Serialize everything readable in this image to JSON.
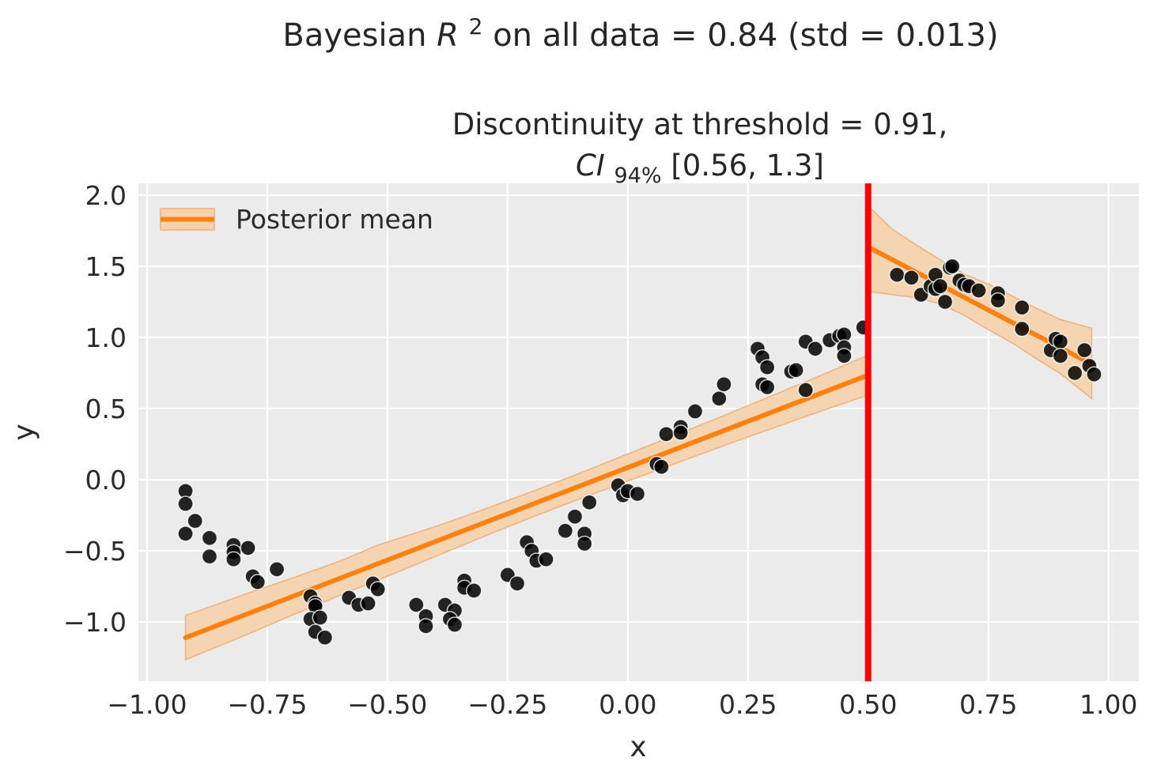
{
  "figure": {
    "suptitle": {
      "pre": "Bayesian ",
      "var": "R",
      "sup": "2",
      "post": " on all data = 0.84 (std = 0.013)"
    },
    "axes_title": {
      "line1": "Discontinuity at threshold = 0.91,",
      "line2_var": "CI",
      "line2_sub": "94%",
      "line2_rest": "[0.56, 1.3]"
    },
    "xlabel": "x",
    "ylabel": "y",
    "legend": {
      "label": "Posterior mean"
    }
  },
  "chart_data": {
    "type": "scatter",
    "title": "Bayesian R^2 on all data = 0.84 (std = 0.013)",
    "subtitle": "Discontinuity at threshold = 0.91, CI_94%[0.56, 1.3]",
    "xlabel": "x",
    "ylabel": "y",
    "xlim": [
      -1.018,
      1.063
    ],
    "ylim": [
      -1.417,
      2.083
    ],
    "grid": true,
    "legend_position": "upper left",
    "threshold_x": 0.5,
    "xticks": {
      "values": [
        -1.0,
        -0.75,
        -0.5,
        -0.25,
        0.0,
        0.25,
        0.5,
        0.75,
        1.0
      ],
      "labels": [
        "−1.00",
        "−0.75",
        "−0.50",
        "−0.25",
        "0.00",
        "0.25",
        "0.50",
        "0.75",
        "1.00"
      ]
    },
    "yticks": {
      "values": [
        2.0,
        1.5,
        1.0,
        0.5,
        0.0,
        -0.5,
        -1.0
      ],
      "labels": [
        "2.0",
        "1.5",
        "1.0",
        "0.5",
        "0.0",
        "−0.5",
        "−1.0"
      ]
    },
    "scatter_left": [
      [
        -0.92,
        -0.08
      ],
      [
        -0.92,
        -0.17
      ],
      [
        -0.9,
        -0.29
      ],
      [
        -0.92,
        -0.38
      ],
      [
        -0.87,
        -0.41
      ],
      [
        -0.87,
        -0.54
      ],
      [
        -0.82,
        -0.46
      ],
      [
        -0.82,
        -0.51
      ],
      [
        -0.82,
        -0.56
      ],
      [
        -0.79,
        -0.48
      ],
      [
        -0.78,
        -0.68
      ],
      [
        -0.77,
        -0.72
      ],
      [
        -0.73,
        -0.63
      ],
      [
        -0.66,
        -0.82
      ],
      [
        -0.65,
        -0.87
      ],
      [
        -0.65,
        -0.89
      ],
      [
        -0.66,
        -0.98
      ],
      [
        -0.64,
        -0.97
      ],
      [
        -0.65,
        -1.07
      ],
      [
        -0.63,
        -1.11
      ],
      [
        -0.58,
        -0.83
      ],
      [
        -0.56,
        -0.88
      ],
      [
        -0.54,
        -0.87
      ],
      [
        -0.53,
        -0.73
      ],
      [
        -0.52,
        -0.77
      ],
      [
        -0.44,
        -0.88
      ],
      [
        -0.42,
        -0.96
      ],
      [
        -0.42,
        -1.03
      ],
      [
        -0.38,
        -0.88
      ],
      [
        -0.36,
        -0.92
      ],
      [
        -0.37,
        -0.98
      ],
      [
        -0.36,
        -1.02
      ],
      [
        -0.34,
        -0.71
      ],
      [
        -0.34,
        -0.76
      ],
      [
        -0.32,
        -0.78
      ],
      [
        -0.25,
        -0.67
      ],
      [
        -0.23,
        -0.73
      ],
      [
        -0.21,
        -0.44
      ],
      [
        -0.2,
        -0.5
      ],
      [
        -0.19,
        -0.57
      ],
      [
        -0.17,
        -0.56
      ],
      [
        -0.13,
        -0.36
      ],
      [
        -0.11,
        -0.26
      ],
      [
        -0.09,
        -0.38
      ],
      [
        -0.09,
        -0.45
      ],
      [
        -0.08,
        -0.16
      ],
      [
        -0.02,
        -0.04
      ],
      [
        -0.01,
        -0.11
      ],
      [
        0.0,
        -0.08
      ],
      [
        0.02,
        -0.1
      ],
      [
        0.06,
        0.11
      ],
      [
        0.07,
        0.09
      ],
      [
        0.08,
        0.32
      ],
      [
        0.11,
        0.37
      ],
      [
        0.11,
        0.33
      ],
      [
        0.14,
        0.48
      ],
      [
        0.19,
        0.57
      ],
      [
        0.2,
        0.67
      ],
      [
        0.27,
        0.92
      ],
      [
        0.28,
        0.86
      ],
      [
        0.29,
        0.79
      ],
      [
        0.28,
        0.67
      ],
      [
        0.29,
        0.65
      ],
      [
        0.34,
        0.76
      ],
      [
        0.35,
        0.77
      ],
      [
        0.37,
        0.97
      ],
      [
        0.39,
        0.92
      ],
      [
        0.37,
        0.63
      ],
      [
        0.42,
        0.98
      ],
      [
        0.44,
        1.01
      ],
      [
        0.45,
        1.02
      ],
      [
        0.45,
        0.93
      ],
      [
        0.45,
        0.87
      ],
      [
        0.49,
        1.07
      ]
    ],
    "scatter_right": [
      [
        0.56,
        1.44
      ],
      [
        0.59,
        1.42
      ],
      [
        0.61,
        1.3
      ],
      [
        0.63,
        1.36
      ],
      [
        0.64,
        1.44
      ],
      [
        0.64,
        1.34
      ],
      [
        0.65,
        1.36
      ],
      [
        0.66,
        1.25
      ],
      [
        0.67,
        1.49
      ],
      [
        0.675,
        1.5
      ],
      [
        0.69,
        1.4
      ],
      [
        0.7,
        1.37
      ],
      [
        0.71,
        1.36
      ],
      [
        0.73,
        1.33
      ],
      [
        0.77,
        1.31
      ],
      [
        0.77,
        1.26
      ],
      [
        0.82,
        1.21
      ],
      [
        0.82,
        1.06
      ],
      [
        0.88,
        0.91
      ],
      [
        0.89,
        0.99
      ],
      [
        0.9,
        0.97
      ],
      [
        0.9,
        0.87
      ],
      [
        0.93,
        0.75
      ],
      [
        0.95,
        0.91
      ],
      [
        0.96,
        0.8
      ],
      [
        0.97,
        0.74
      ]
    ],
    "posterior_mean_left": [
      [
        -0.92,
        -1.111
      ],
      [
        0.5,
        0.735
      ]
    ],
    "posterior_mean_right": [
      [
        0.5,
        1.635
      ],
      [
        0.965,
        0.812
      ]
    ],
    "ci_band_left": {
      "x": [
        -0.92,
        -0.8,
        -0.7,
        -0.6,
        -0.52,
        -0.4,
        -0.3,
        -0.2,
        -0.1,
        0.0,
        0.1,
        0.2,
        0.3,
        0.4,
        0.5
      ],
      "hi": [
        -0.956,
        -0.81,
        -0.695,
        -0.575,
        -0.46,
        -0.33,
        -0.21,
        -0.085,
        0.045,
        0.18,
        0.315,
        0.45,
        0.59,
        0.73,
        0.875
      ],
      "lo": [
        -1.266,
        -1.1,
        -0.955,
        -0.815,
        -0.706,
        -0.54,
        -0.4,
        -0.265,
        -0.135,
        -0.01,
        0.115,
        0.24,
        0.36,
        0.48,
        0.595
      ]
    },
    "ci_band_right": {
      "x": [
        0.5,
        0.55,
        0.6,
        0.65,
        0.7,
        0.75,
        0.8,
        0.85,
        0.9,
        0.965
      ],
      "hi": [
        1.925,
        1.76,
        1.65,
        1.545,
        1.445,
        1.375,
        1.29,
        1.205,
        1.125,
        1.065
      ],
      "lo": [
        1.325,
        1.3,
        1.28,
        1.235,
        1.155,
        1.055,
        0.96,
        0.85,
        0.745,
        0.57
      ]
    },
    "colors": {
      "axes_background": "#ebebeb",
      "grid": "#ffffff",
      "scatter": "#000000",
      "scatter_edge": "#ffffff",
      "posterior_line": "#fd810e",
      "ci_band_fill": "#f4d2ae",
      "ci_band_edge": "#f2b27c",
      "threshold_line": "#ff0000",
      "text": "#262626"
    }
  }
}
